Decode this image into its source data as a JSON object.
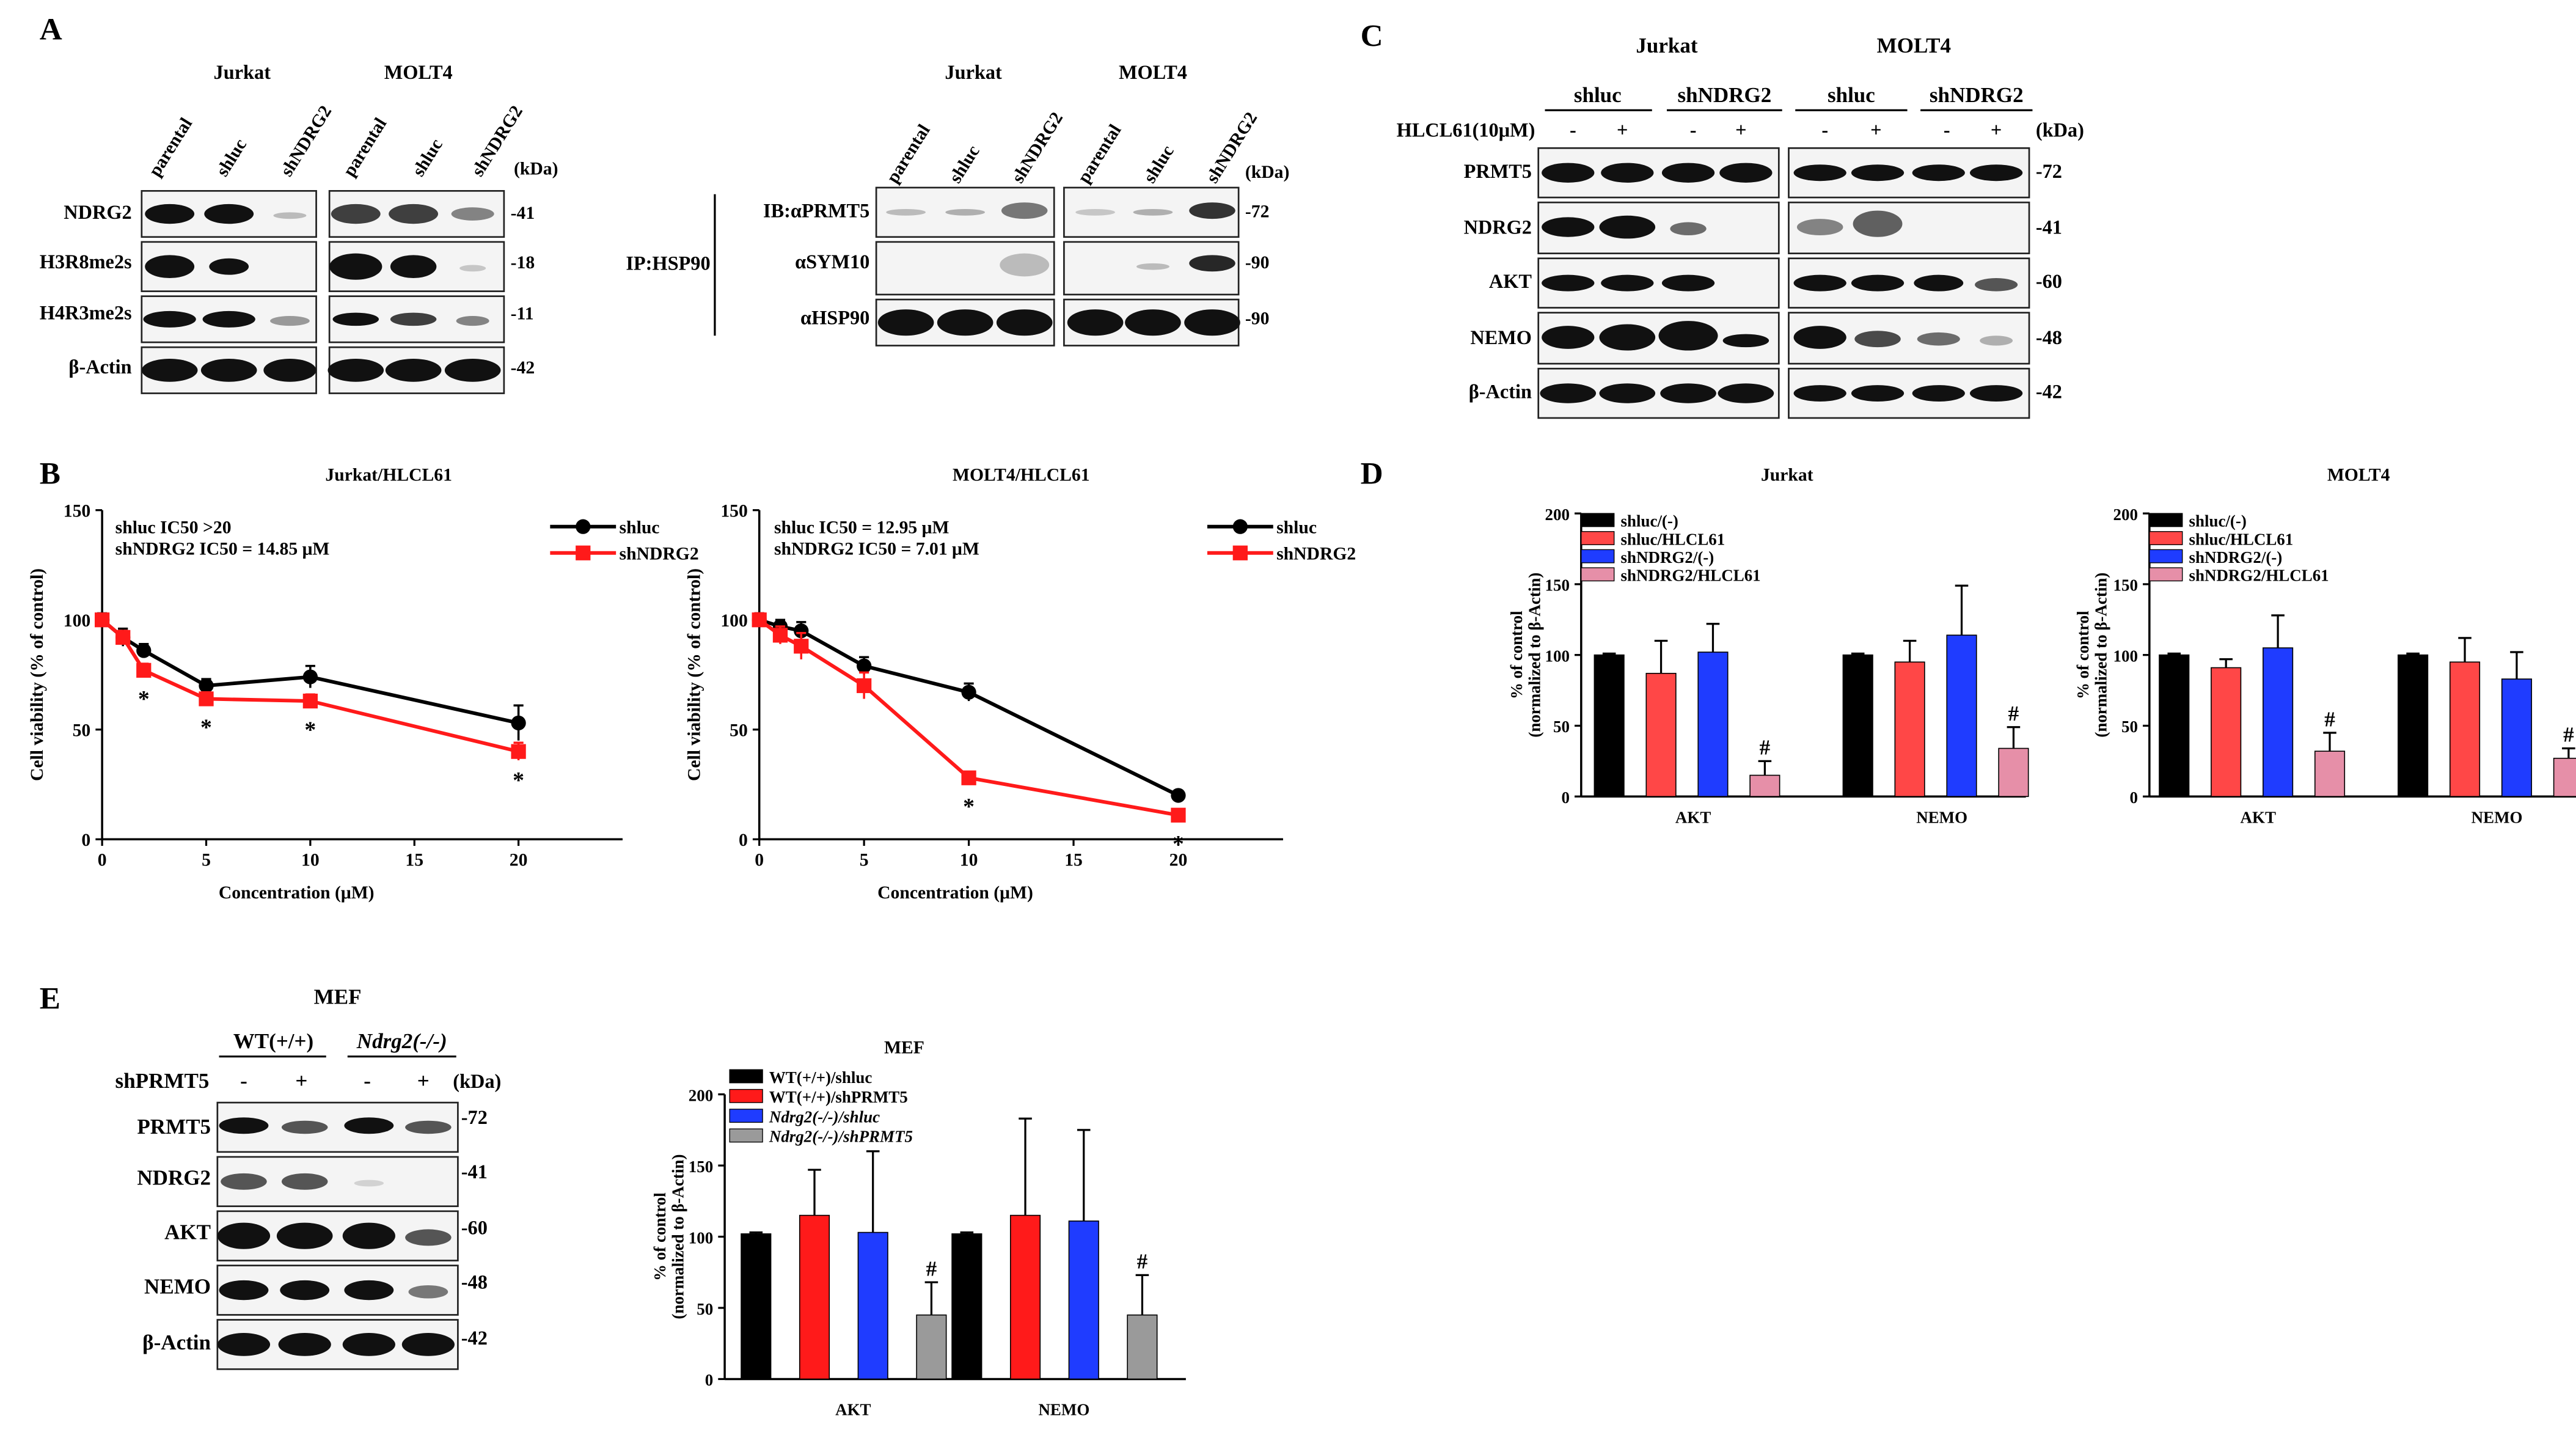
{
  "figure": {
    "panel_letters": [
      "A",
      "B",
      "C",
      "D",
      "E"
    ],
    "colors": {
      "black": "#000000",
      "red": "#ff1a1a",
      "blue": "#1f3cff",
      "pink": "#e68fa8",
      "gray": "#9a9a9a"
    },
    "blot_icon": "western-blot-band"
  },
  "panel_a_left": {
    "cell_lines": [
      "Jurkat",
      "MOLT4"
    ],
    "lanes": [
      "parental",
      "shluc",
      "shNDRG2",
      "parental",
      "shluc",
      "shNDRG2"
    ],
    "kda_header": "(kDa)",
    "rows": [
      {
        "label": "NDRG2",
        "kda": "-41"
      },
      {
        "label": "H3R8me2s",
        "kda": "-18"
      },
      {
        "label": "H4R3me2s",
        "kda": "-11"
      },
      {
        "label": "β-Actin",
        "kda": "-42"
      }
    ]
  },
  "panel_a_right": {
    "cell_lines": [
      "Jurkat",
      "MOLT4"
    ],
    "lanes": [
      "parental",
      "shluc",
      "shNDRG2",
      "parental",
      "shluc",
      "shNDRG2"
    ],
    "kda_header": "(kDa)",
    "ip_label": "IP:HSP90",
    "rows": [
      {
        "label": "IB:αPRMT5",
        "kda": "-72"
      },
      {
        "label": "αSYM10",
        "kda": "-90"
      },
      {
        "label": "αHSP90",
        "kda": "-90"
      }
    ]
  },
  "panel_c": {
    "cell_lines": [
      "Jurkat",
      "MOLT4"
    ],
    "groups": [
      "shluc",
      "shNDRG2",
      "shluc",
      "shNDRG2"
    ],
    "treatment_label": "HLCL61(10μM)",
    "treatment_signs": [
      "-",
      "+",
      "-",
      "+",
      "-",
      "+",
      "-",
      "+"
    ],
    "kda_header": "(kDa)",
    "rows": [
      {
        "label": "PRMT5",
        "kda": "-72"
      },
      {
        "label": "NDRG2",
        "kda": "-41"
      },
      {
        "label": "AKT",
        "kda": "-60"
      },
      {
        "label": "NEMO",
        "kda": "-48"
      },
      {
        "label": "β-Actin",
        "kda": "-42"
      }
    ]
  },
  "panel_e_blot": {
    "title": "MEF",
    "groups": [
      "WT(+/+)",
      "Ndrg2(-/-)"
    ],
    "treatment_label": "shPRMT5",
    "treatment_signs": [
      "-",
      "+",
      "-",
      "+"
    ],
    "kda_header": "(kDa)",
    "rows": [
      {
        "label": "PRMT5",
        "kda": "-72"
      },
      {
        "label": "NDRG2",
        "kda": "-41"
      },
      {
        "label": "AKT",
        "kda": "-60"
      },
      {
        "label": "NEMO",
        "kda": "-48"
      },
      {
        "label": "β-Actin",
        "kda": "-42"
      }
    ]
  },
  "chart_data": [
    {
      "id": "b-jurkat",
      "type": "line",
      "title": "Jurkat/HLCL61",
      "xlabel": "Concentration (μM)",
      "ylabel": "Cell viability (% of control)",
      "xlim": [
        0,
        25
      ],
      "ylim": [
        0,
        150
      ],
      "xticks": [
        0,
        5,
        10,
        15,
        20
      ],
      "yticks": [
        0,
        50,
        100,
        150
      ],
      "annotations": [
        "shluc IC50 >20",
        "shNDRG2 IC50 = 14.85 μM"
      ],
      "legend": "top-right",
      "x": [
        0,
        1,
        2,
        5,
        10,
        20
      ],
      "series": [
        {
          "name": "shluc",
          "color": "#000000",
          "marker": "circle",
          "values": [
            100,
            92,
            86,
            70,
            74,
            53
          ],
          "errors": [
            3,
            4,
            3,
            3,
            5,
            8
          ]
        },
        {
          "name": "shNDRG2",
          "color": "#ff1a1a",
          "marker": "square",
          "values": [
            100,
            92,
            77,
            64,
            63,
            40
          ],
          "errors": [
            2,
            3,
            3,
            3,
            3,
            4
          ]
        }
      ],
      "significance": [
        {
          "x": 2,
          "label": "*"
        },
        {
          "x": 5,
          "label": "*"
        },
        {
          "x": 10,
          "label": "*"
        },
        {
          "x": 20,
          "label": "*"
        }
      ]
    },
    {
      "id": "b-molt4",
      "type": "line",
      "title": "MOLT4/HLCL61",
      "xlabel": "Concentration (μM)",
      "ylabel": "Cell viability (% of control)",
      "xlim": [
        0,
        25
      ],
      "ylim": [
        0,
        150
      ],
      "xticks": [
        0,
        5,
        10,
        15,
        20
      ],
      "yticks": [
        0,
        50,
        100,
        150
      ],
      "annotations": [
        "shluc IC50 = 12.95 μM",
        "shNDRG2 IC50 = 7.01 μM"
      ],
      "legend": "top-right",
      "x": [
        0,
        1,
        2,
        5,
        10,
        20
      ],
      "series": [
        {
          "name": "shluc",
          "color": "#000000",
          "marker": "circle",
          "values": [
            100,
            97,
            95,
            79,
            67,
            20
          ],
          "errors": [
            3,
            3,
            4,
            4,
            4,
            2
          ]
        },
        {
          "name": "shNDRG2",
          "color": "#ff1a1a",
          "marker": "square",
          "values": [
            100,
            93,
            88,
            70,
            28,
            11
          ],
          "errors": [
            3,
            4,
            6,
            6,
            2,
            2
          ]
        }
      ],
      "significance": [
        {
          "x": 10,
          "label": "*"
        },
        {
          "x": 20,
          "label": "*"
        }
      ]
    },
    {
      "id": "d-jurkat",
      "type": "bar",
      "title": "Jurkat",
      "ylabel": "% of control",
      "ylabel2": "(normalized to β-Actin)",
      "ylim": [
        0,
        200
      ],
      "yticks": [
        0,
        50,
        100,
        150,
        200
      ],
      "categories": [
        "AKT",
        "NEMO"
      ],
      "legend": "top-left",
      "series": [
        {
          "name": "shluc/(-)",
          "color": "#000000",
          "values": [
            100,
            100
          ],
          "errors": [
            1,
            1
          ]
        },
        {
          "name": "shluc/HLCL61",
          "color": "#ff4747",
          "values": [
            87,
            95
          ],
          "errors": [
            23,
            15
          ]
        },
        {
          "name": "shNDRG2/(-)",
          "color": "#1f3cff",
          "values": [
            102,
            114
          ],
          "errors": [
            20,
            35
          ]
        },
        {
          "name": "shNDRG2/HLCL61",
          "color": "#e68fa8",
          "values": [
            15,
            34
          ],
          "errors": [
            10,
            15
          ]
        }
      ],
      "significance": [
        {
          "category": "AKT",
          "series": 3,
          "label": "#"
        },
        {
          "category": "NEMO",
          "series": 3,
          "label": "#"
        }
      ]
    },
    {
      "id": "d-molt4",
      "type": "bar",
      "title": "MOLT4",
      "ylabel": "% of control",
      "ylabel2": "(normalized to β-Actin)",
      "ylim": [
        0,
        200
      ],
      "yticks": [
        0,
        50,
        100,
        150,
        200
      ],
      "categories": [
        "AKT",
        "NEMO"
      ],
      "legend": "top-left",
      "series": [
        {
          "name": "shluc/(-)",
          "color": "#000000",
          "values": [
            100,
            100
          ],
          "errors": [
            1,
            1
          ]
        },
        {
          "name": "shluc/HLCL61",
          "color": "#ff4747",
          "values": [
            91,
            95
          ],
          "errors": [
            6,
            17
          ]
        },
        {
          "name": "shNDRG2/(-)",
          "color": "#1f3cff",
          "values": [
            105,
            83
          ],
          "errors": [
            23,
            19
          ]
        },
        {
          "name": "shNDRG2/HLCL61",
          "color": "#e68fa8",
          "values": [
            32,
            27
          ],
          "errors": [
            13,
            7
          ]
        }
      ],
      "significance": [
        {
          "category": "AKT",
          "series": 3,
          "label": "#"
        },
        {
          "category": "NEMO",
          "series": 3,
          "label": "#"
        }
      ]
    },
    {
      "id": "e-mef",
      "type": "bar",
      "title": "MEF",
      "ylabel": "% of control",
      "ylabel2": "(normalized to β-Actin)",
      "ylim": [
        0,
        200
      ],
      "yticks": [
        0,
        50,
        100,
        150,
        200
      ],
      "categories": [
        "AKT",
        "NEMO"
      ],
      "legend": "top-left",
      "series": [
        {
          "name": "WT(+/+)/shluc",
          "color": "#000000",
          "values": [
            102,
            102
          ],
          "errors": [
            1,
            1
          ]
        },
        {
          "name": "WT(+/+)/shPRMT5",
          "color": "#ff1a1a",
          "values": [
            115,
            115
          ],
          "errors": [
            32,
            68
          ]
        },
        {
          "name": "Ndrg2(-/-)/shluc",
          "color": "#1f3cff",
          "values": [
            103,
            111
          ],
          "errors": [
            57,
            64
          ]
        },
        {
          "name": "Ndrg2(-/-)/shPRMT5",
          "color": "#9a9a9a",
          "values": [
            45,
            45
          ],
          "errors": [
            23,
            28
          ]
        }
      ],
      "significance": [
        {
          "category": "AKT",
          "series": 3,
          "label": "#"
        },
        {
          "category": "NEMO",
          "series": 3,
          "label": "#"
        }
      ]
    }
  ]
}
